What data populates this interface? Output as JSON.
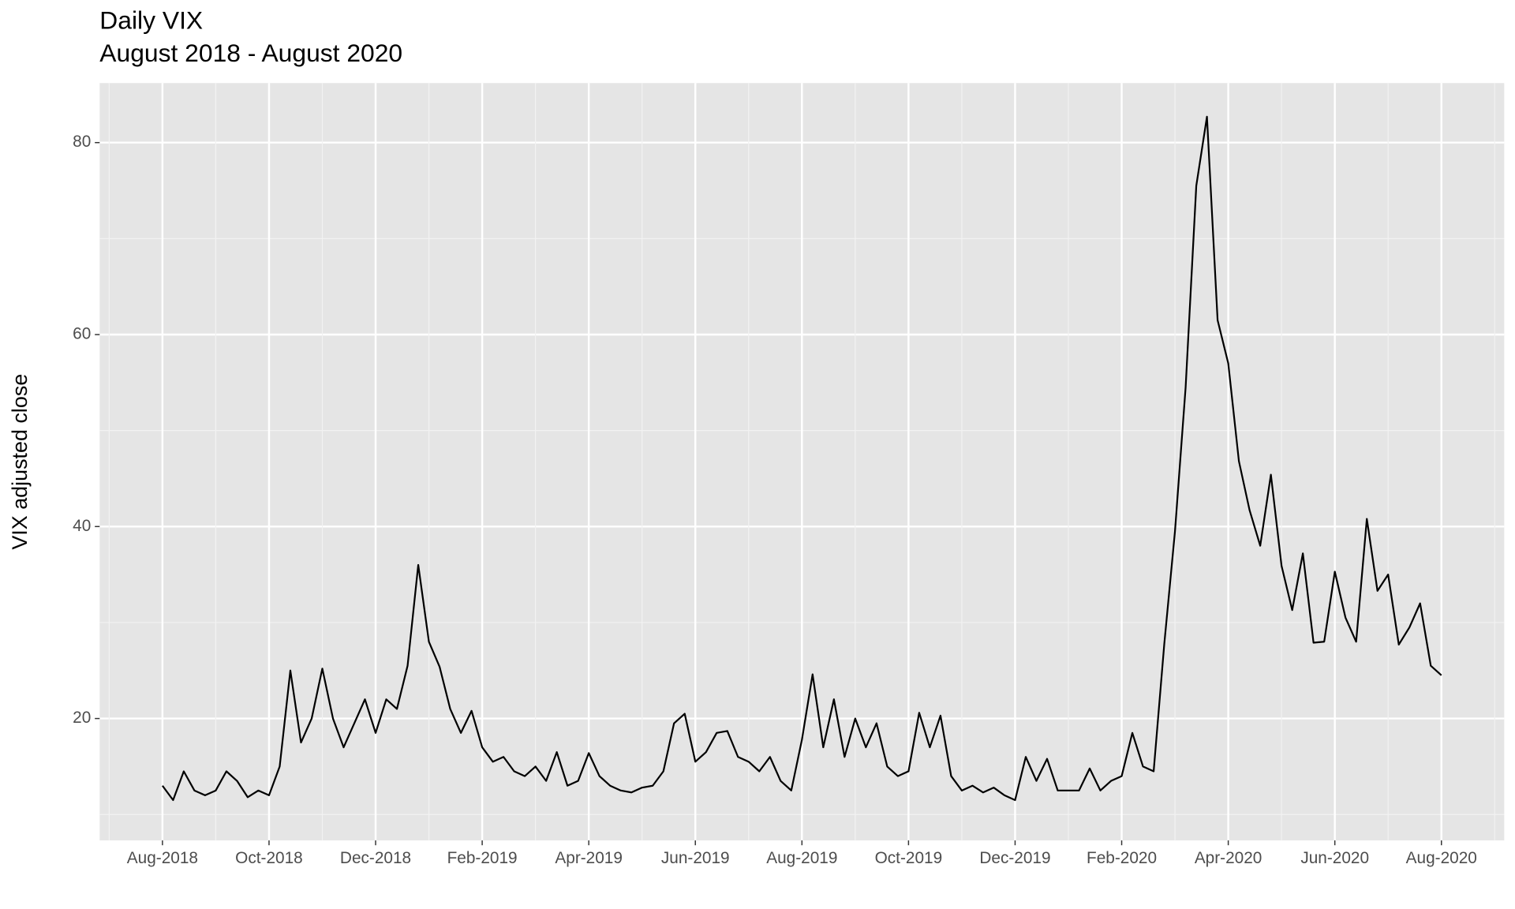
{
  "chart_data": {
    "type": "line",
    "title": "Daily VIX",
    "subtitle": "August 2018 - August 2020",
    "y_label": "VIX adjusted close",
    "categories": [
      "Aug-2018",
      null,
      null,
      null,
      null,
      null,
      null,
      null,
      null,
      null,
      "Oct-2018",
      null,
      null,
      null,
      null,
      null,
      null,
      null,
      null,
      null,
      "Dec-2018",
      null,
      null,
      null,
      null,
      null,
      null,
      null,
      null,
      null,
      "Feb-2019",
      null,
      null,
      null,
      null,
      null,
      null,
      null,
      null,
      null,
      "Apr-2019",
      null,
      null,
      null,
      null,
      null,
      null,
      null,
      null,
      null,
      "Jun-2019",
      null,
      null,
      null,
      null,
      null,
      null,
      null,
      null,
      null,
      "Aug-2019",
      null,
      null,
      null,
      null,
      null,
      null,
      null,
      null,
      null,
      "Oct-2019",
      null,
      null,
      null,
      null,
      null,
      null,
      null,
      null,
      null,
      "Dec-2019",
      null,
      null,
      null,
      null,
      null,
      null,
      null,
      null,
      null,
      "Feb-2020",
      null,
      null,
      null,
      null,
      null,
      null,
      null,
      null,
      null,
      "Apr-2020",
      null,
      null,
      null,
      null,
      null,
      null,
      null,
      null,
      null,
      "Jun-2020",
      null,
      null,
      null,
      null,
      null,
      null,
      null,
      null,
      null,
      "Aug-2020"
    ],
    "values": [
      13,
      11.5,
      14.5,
      12.5,
      12,
      12.5,
      14.5,
      13.5,
      11.8,
      12.5,
      12,
      15,
      25,
      17.5,
      20,
      25.2,
      20,
      17,
      19.5,
      22,
      18.5,
      22,
      21,
      25.5,
      36,
      28,
      25.4,
      21,
      18.5,
      20.8,
      17,
      15.5,
      16,
      14.5,
      14,
      15,
      13.5,
      16.5,
      13,
      13.5,
      16.4,
      14,
      13,
      12.5,
      12.3,
      12.8,
      13,
      14.5,
      19.5,
      20.5,
      15.5,
      16.5,
      18.5,
      18.7,
      16,
      15.5,
      14.5,
      16,
      13.5,
      12.5,
      17.8,
      24.6,
      17,
      22,
      16,
      20,
      17,
      19.5,
      15,
      14,
      14.5,
      20.6,
      17,
      20.3,
      14,
      12.5,
      13,
      12.3,
      12.8,
      12,
      11.5,
      16,
      13.5,
      15.8,
      12.5,
      12.5,
      12.5,
      14.8,
      12.5,
      13.5,
      14,
      18.5,
      15,
      14.5,
      27.8,
      39.5,
      54.5,
      75.5,
      82.7,
      61.5,
      57,
      46.8,
      41.7,
      38,
      45.4,
      35.9,
      31.3,
      37.2,
      27.9,
      28,
      35.3,
      30.5,
      28,
      40.8,
      33.3,
      35,
      27.7,
      29.5,
      32,
      25.5,
      24.5
    ],
    "color": "#000000",
    "ylim": [
      7.3,
      86.2
    ],
    "yticks": [
      20,
      40,
      60,
      80
    ],
    "grid": true
  }
}
